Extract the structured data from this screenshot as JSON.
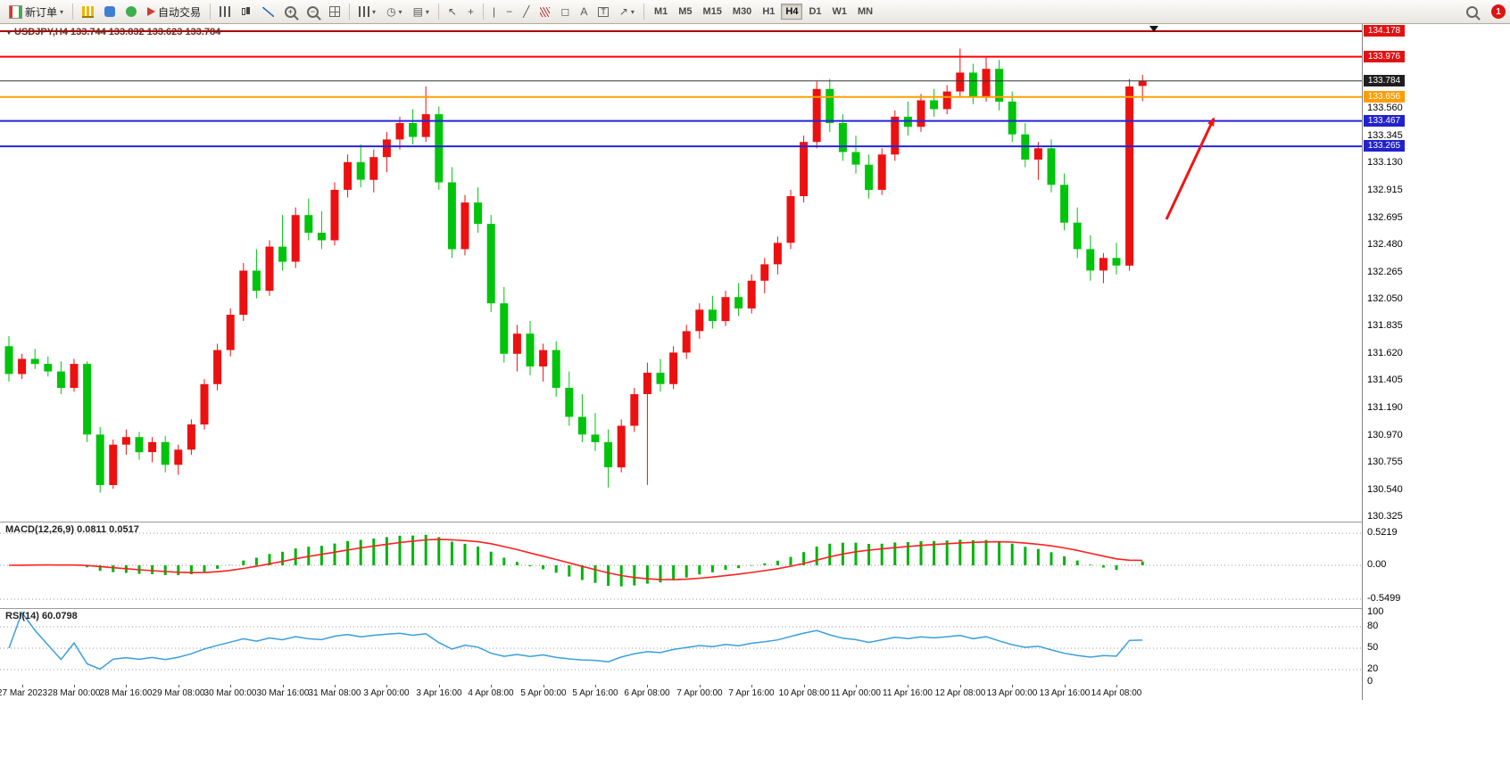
{
  "toolbar": {
    "new_order_label": "新订单",
    "auto_trading_label": "自动交易",
    "timeframes": [
      "M1",
      "M5",
      "M15",
      "M30",
      "H1",
      "H4",
      "D1",
      "W1",
      "MN"
    ],
    "active_timeframe": "H4",
    "notification_count": "1"
  },
  "chart": {
    "title": "USDJPY,H4 133.744 133.832 133.623 133.784",
    "macd_label": "MACD(12,26,9) 0.0811 0.0517",
    "rsi_label": "RSI(14) 60.0798"
  },
  "chart_data": {
    "type": "candlestick",
    "symbol": "USDJPY",
    "timeframe": "H4",
    "current_bar": {
      "open": 133.744,
      "high": 133.832,
      "low": 133.623,
      "close": 133.784
    },
    "price_range": [
      130.325,
      134.178
    ],
    "ohlc": [
      [
        131.68,
        131.76,
        131.4,
        131.46
      ],
      [
        131.46,
        131.62,
        131.42,
        131.58
      ],
      [
        131.58,
        131.66,
        131.5,
        131.54
      ],
      [
        131.54,
        131.6,
        131.44,
        131.48
      ],
      [
        131.48,
        131.56,
        131.3,
        131.35
      ],
      [
        131.35,
        131.58,
        131.32,
        131.54
      ],
      [
        131.54,
        131.56,
        130.92,
        130.98
      ],
      [
        130.98,
        131.04,
        130.52,
        130.58
      ],
      [
        130.58,
        130.94,
        130.55,
        130.9
      ],
      [
        130.9,
        131.02,
        130.82,
        130.96
      ],
      [
        130.96,
        131.0,
        130.78,
        130.84
      ],
      [
        130.84,
        130.96,
        130.76,
        130.92
      ],
      [
        130.92,
        130.97,
        130.68,
        130.74
      ],
      [
        130.74,
        130.9,
        130.66,
        130.86
      ],
      [
        130.86,
        131.1,
        130.82,
        131.06
      ],
      [
        131.06,
        131.42,
        131.02,
        131.38
      ],
      [
        131.38,
        131.7,
        131.33,
        131.65
      ],
      [
        131.65,
        131.98,
        131.6,
        131.93
      ],
      [
        131.93,
        132.34,
        131.88,
        132.28
      ],
      [
        132.28,
        132.45,
        132.06,
        132.12
      ],
      [
        132.12,
        132.52,
        132.08,
        132.47
      ],
      [
        132.47,
        132.72,
        132.28,
        132.35
      ],
      [
        132.35,
        132.78,
        132.3,
        132.72
      ],
      [
        132.72,
        132.85,
        132.52,
        132.58
      ],
      [
        132.58,
        132.75,
        132.45,
        132.52
      ],
      [
        132.52,
        132.98,
        132.48,
        132.92
      ],
      [
        132.92,
        133.2,
        132.86,
        133.14
      ],
      [
        133.14,
        133.28,
        132.94,
        133.0
      ],
      [
        133.0,
        133.24,
        132.9,
        133.18
      ],
      [
        133.18,
        133.38,
        133.06,
        133.32
      ],
      [
        133.32,
        133.5,
        133.24,
        133.45
      ],
      [
        133.45,
        133.56,
        133.28,
        133.34
      ],
      [
        133.34,
        133.74,
        133.3,
        133.52
      ],
      [
        133.52,
        133.58,
        132.92,
        132.98
      ],
      [
        132.98,
        133.1,
        132.38,
        132.45
      ],
      [
        132.45,
        132.88,
        132.4,
        132.82
      ],
      [
        132.82,
        132.94,
        132.58,
        132.65
      ],
      [
        132.65,
        132.72,
        131.95,
        132.02
      ],
      [
        132.02,
        132.15,
        131.55,
        131.62
      ],
      [
        131.62,
        131.85,
        131.48,
        131.78
      ],
      [
        131.78,
        131.88,
        131.45,
        131.52
      ],
      [
        131.52,
        131.7,
        131.4,
        131.65
      ],
      [
        131.65,
        131.72,
        131.28,
        131.35
      ],
      [
        131.35,
        131.48,
        131.05,
        131.12
      ],
      [
        131.12,
        131.3,
        130.92,
        130.98
      ],
      [
        130.98,
        131.15,
        130.85,
        130.92
      ],
      [
        130.92,
        131.02,
        130.56,
        130.72
      ],
      [
        130.72,
        131.1,
        130.68,
        131.05
      ],
      [
        131.05,
        131.35,
        131.0,
        131.3
      ],
      [
        131.3,
        131.55,
        130.58,
        131.47
      ],
      [
        131.47,
        131.58,
        131.32,
        131.38
      ],
      [
        131.38,
        131.68,
        131.34,
        131.63
      ],
      [
        131.63,
        131.85,
        131.58,
        131.8
      ],
      [
        131.8,
        132.02,
        131.74,
        131.97
      ],
      [
        131.97,
        132.08,
        131.82,
        131.88
      ],
      [
        131.88,
        132.12,
        131.84,
        132.07
      ],
      [
        132.07,
        132.18,
        131.92,
        131.98
      ],
      [
        131.98,
        132.25,
        131.94,
        132.2
      ],
      [
        132.2,
        132.38,
        132.1,
        132.33
      ],
      [
        132.33,
        132.55,
        132.25,
        132.5
      ],
      [
        132.5,
        132.92,
        132.45,
        132.87
      ],
      [
        132.87,
        133.35,
        132.82,
        133.3
      ],
      [
        133.3,
        133.78,
        133.25,
        133.72
      ],
      [
        133.72,
        133.8,
        133.38,
        133.45
      ],
      [
        133.45,
        133.52,
        133.15,
        133.22
      ],
      [
        133.22,
        133.35,
        133.05,
        133.12
      ],
      [
        133.12,
        133.2,
        132.85,
        132.92
      ],
      [
        132.92,
        133.25,
        132.88,
        133.2
      ],
      [
        133.2,
        133.55,
        133.15,
        133.5
      ],
      [
        133.5,
        133.62,
        133.35,
        133.42
      ],
      [
        133.42,
        133.68,
        133.38,
        133.63
      ],
      [
        133.63,
        133.72,
        133.5,
        133.56
      ],
      [
        133.56,
        133.75,
        133.52,
        133.7
      ],
      [
        133.7,
        134.04,
        133.65,
        133.85
      ],
      [
        133.85,
        133.92,
        133.6,
        133.66
      ],
      [
        133.66,
        133.98,
        133.62,
        133.88
      ],
      [
        133.88,
        133.95,
        133.55,
        133.62
      ],
      [
        133.62,
        133.7,
        133.3,
        133.36
      ],
      [
        133.36,
        133.45,
        133.1,
        133.16
      ],
      [
        133.16,
        133.3,
        133.0,
        133.25
      ],
      [
        133.25,
        133.32,
        132.9,
        132.96
      ],
      [
        132.96,
        133.05,
        132.6,
        132.66
      ],
      [
        132.66,
        132.78,
        132.38,
        132.45
      ],
      [
        132.45,
        132.56,
        132.2,
        132.28
      ],
      [
        132.28,
        132.42,
        132.18,
        132.38
      ],
      [
        132.38,
        132.5,
        132.25,
        132.32
      ],
      [
        132.32,
        133.8,
        132.28,
        133.74
      ],
      [
        133.744,
        133.832,
        133.623,
        133.784
      ]
    ],
    "time_labels": [
      "27 Mar 2023",
      "28 Mar 00:00",
      "28 Mar 16:00",
      "29 Mar 08:00",
      "30 Mar 00:00",
      "30 Mar 16:00",
      "31 Mar 08:00",
      "3 Apr 00:00",
      "3 Apr 16:00",
      "4 Apr 08:00",
      "5 Apr 00:00",
      "5 Apr 16:00",
      "6 Apr 08:00",
      "7 Apr 00:00",
      "7 Apr 16:00",
      "10 Apr 08:00",
      "11 Apr 00:00",
      "11 Apr 16:00",
      "12 Apr 08:00",
      "13 Apr 00:00",
      "13 Apr 16:00",
      "14 Apr 08:00"
    ],
    "price_ticks": [
      "133.560",
      "133.345",
      "133.130",
      "132.915",
      "132.695",
      "132.480",
      "132.265",
      "132.050",
      "131.835",
      "131.620",
      "131.405",
      "131.190",
      "130.970",
      "130.755",
      "130.540",
      "130.325"
    ],
    "hlines": [
      {
        "value": 134.178,
        "color": "#aa0000",
        "width": 2,
        "tag": "134.178",
        "tag_color": "#e01212"
      },
      {
        "value": 133.976,
        "color": "#ff0000",
        "width": 2,
        "tag": "133.976",
        "tag_color": "#e01212"
      },
      {
        "value": 133.784,
        "color": "#333333",
        "width": 1,
        "tag": "133.784",
        "tag_color": "#1f1f1f"
      },
      {
        "value": 133.656,
        "color": "#ffa000",
        "width": 2,
        "tag": "133.656",
        "tag_color": "#ff9d00"
      },
      {
        "value": 133.467,
        "color": "#2424dd",
        "width": 2,
        "tag": "133.467",
        "tag_color": "#2222cc"
      },
      {
        "value": 133.265,
        "color": "#2424dd",
        "width": 2,
        "tag": "133.265",
        "tag_color": "#2222cc"
      }
    ],
    "macd": {
      "name": "MACD",
      "params": "12,26,9",
      "value": "0.0811",
      "signal": "0.0517",
      "scale": [
        "0.5219",
        "0.00",
        "-0.5499"
      ],
      "range": [
        -0.5499,
        0.5219
      ]
    },
    "rsi": {
      "name": "RSI",
      "params": "14",
      "value": "60.0798",
      "scale": [
        "100",
        "80",
        "50",
        "20",
        "0"
      ],
      "levels": [
        80,
        50,
        20
      ]
    },
    "trend_arrow": {
      "from": [
        1307,
        219
      ],
      "to": [
        1360,
        106
      ],
      "color": "#ee1515"
    }
  },
  "colors": {
    "candle_up": "#ec1111",
    "candle_down": "#00c40c",
    "macd_hist": "#00b40a",
    "macd_signal": "#ff2020",
    "rsi_line": "#3a9fdc",
    "axis_text": "#000000"
  }
}
